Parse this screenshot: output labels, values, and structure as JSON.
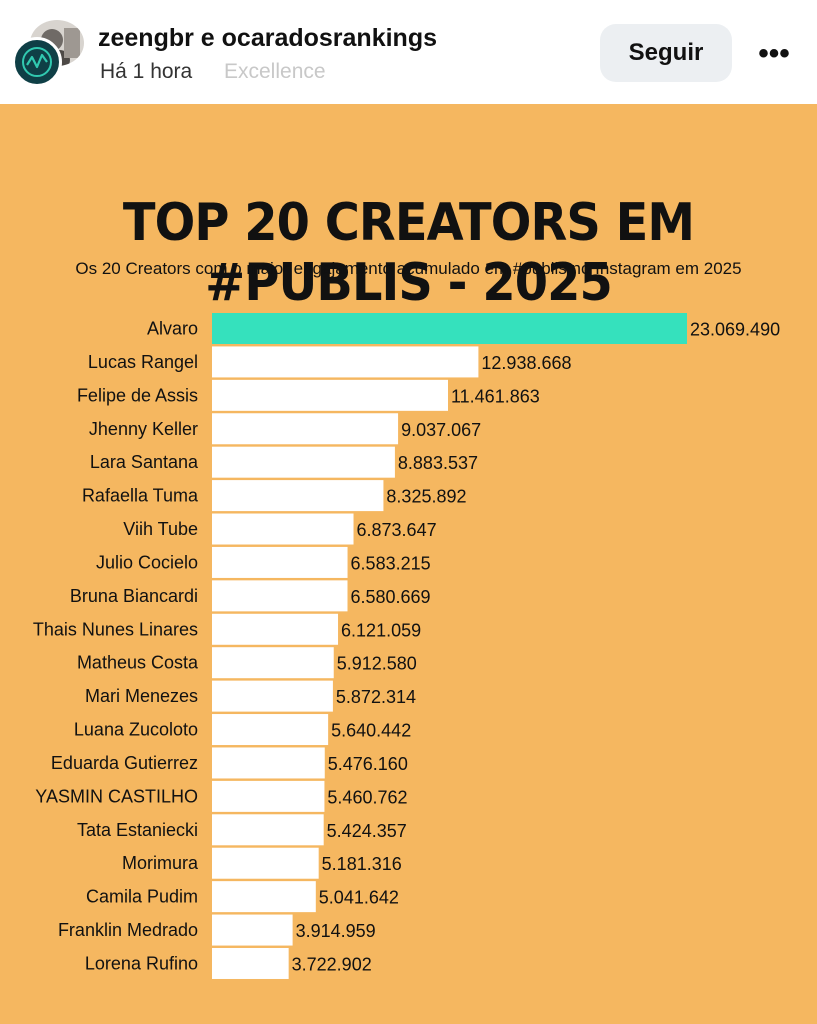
{
  "header": {
    "authors": "zeengbr e ocaradosrankings",
    "time": "Há 1 hora",
    "faded_text": "Excellence",
    "follow_label": "Seguir",
    "more_label": "•••"
  },
  "colors": {
    "background": "#f5b760",
    "highlight_bar": "#35e1bd",
    "bar": "#ffffff"
  },
  "chart_data": {
    "type": "bar",
    "orientation": "horizontal",
    "title": "TOP 20 CREATORS EM #PUBLIS - 2025",
    "subtitle": "Os 20 Creators com o maior engajamento acumulado em #publis no Instagram em 2025",
    "categories": [
      "Alvaro",
      "Lucas Rangel",
      "Felipe de Assis",
      "Jhenny Keller",
      "Lara Santana",
      "Rafaella Tuma",
      "Viih Tube",
      "Julio Cocielo",
      "Bruna Biancardi",
      "Thais Nunes Linares",
      "Matheus Costa",
      "Mari Menezes",
      "Luana Zucoloto",
      "Eduarda Gutierrez",
      "YASMIN CASTILHO",
      "Tata Estaniecki",
      "Morimura",
      "Camila Pudim",
      "Franklin Medrado",
      "Lorena Rufino"
    ],
    "values": [
      23069490,
      12938668,
      11461863,
      9037067,
      8883537,
      8325892,
      6873647,
      6583215,
      6580669,
      6121059,
      5912580,
      5872314,
      5640442,
      5476160,
      5460762,
      5424357,
      5181316,
      5041642,
      3914959,
      3722902
    ],
    "labels": [
      "23.069.490",
      "12.938.668",
      "11.461.863",
      "9.037.067",
      "8.883.537",
      "8.325.892",
      "6.873.647",
      "6.583.215",
      "6.580.669",
      "6.121.059",
      "5.912.580",
      "5.872.314",
      "5.640.442",
      "5.476.160",
      "5.460.762",
      "5.424.357",
      "5.181.316",
      "5.041.642",
      "3.914.959",
      "3.722.902"
    ],
    "highlight_index": 0
  }
}
